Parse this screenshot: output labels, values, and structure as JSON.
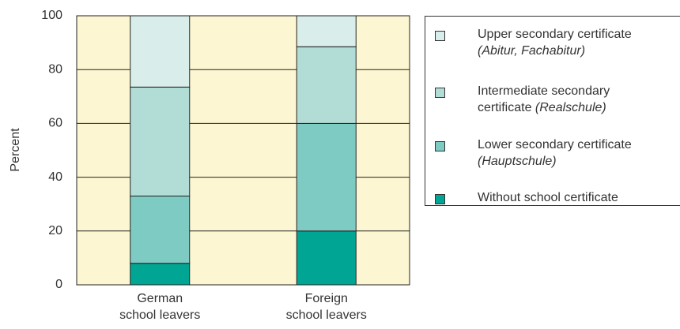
{
  "chart_data": {
    "type": "stacked_bar",
    "y_label": "Percent",
    "categories": [
      "German\nschool leavers",
      "Foreign\nschool leavers"
    ],
    "series": [
      {
        "name": "Without school certificate",
        "color": "#00a594",
        "values": [
          8,
          20
        ]
      },
      {
        "name": "Lower secondary certificate",
        "note": "(Hauptschule)",
        "color": "#7ecbc3",
        "values": [
          25,
          40
        ]
      },
      {
        "name": "Intermediate secondary\ncertificate",
        "note": "(Realschule)",
        "color": "#b2ddd6",
        "values": [
          40.5,
          28.5
        ]
      },
      {
        "name": "Upper secondary certificate",
        "note": "(Abitur, Fachabitur)",
        "color": "#d9eeea",
        "values": [
          26.5,
          11.5
        ]
      }
    ],
    "ylim": [
      0,
      100
    ],
    "yticks": [
      0,
      20,
      40,
      60,
      80,
      100
    ],
    "grid": true,
    "background": "#fdf6d2"
  }
}
